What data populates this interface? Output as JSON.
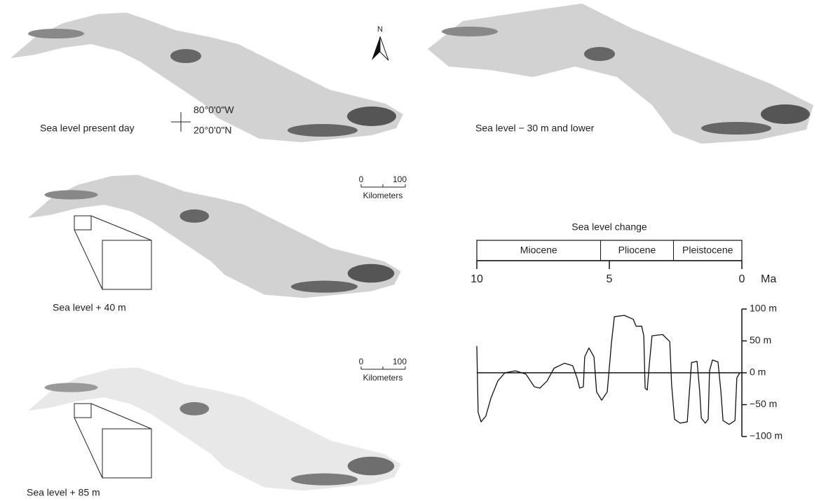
{
  "panels": [
    {
      "label": "Sea level present day"
    },
    {
      "label": "Sea level − 30 m and lower"
    },
    {
      "label": "Sea level + 40 m"
    },
    {
      "label": "Sea level + 85 m"
    }
  ],
  "north_arrow": "N",
  "coordinates": {
    "longitude": "80°0'0\"W",
    "latitude": "20°0'0\"N"
  },
  "scale_bars": [
    {
      "ticks": [
        0,
        100
      ],
      "unit": "Kilometers"
    },
    {
      "ticks": [
        0,
        100
      ],
      "unit": "Kilometers"
    }
  ],
  "chart_data": {
    "type": "line",
    "title": "Sea level change",
    "epochs": [
      {
        "name": "Miocene",
        "start": 10,
        "end": 5.33
      },
      {
        "name": "Pliocene",
        "start": 5.33,
        "end": 2.58
      },
      {
        "name": "Pleistocene",
        "start": 2.58,
        "end": 0
      }
    ],
    "x_label": "Ma",
    "xlim": [
      10,
      0
    ],
    "xticks": [
      10,
      5,
      0
    ],
    "ylim": [
      -100,
      100
    ],
    "yticks": [
      {
        "value": 100,
        "label": "100 m"
      },
      {
        "value": 50,
        "label": "50 m"
      },
      {
        "value": 0,
        "label": "0 m"
      },
      {
        "value": -50,
        "label": "−50 m"
      },
      {
        "value": -100,
        "label": "−100 m"
      }
    ],
    "color": "#111",
    "x": [
      10,
      9.95,
      9.84,
      9.66,
      9.47,
      9.21,
      8.94,
      8.54,
      8.15,
      7.83,
      7.62,
      7.35,
      7.09,
      6.69,
      6.38,
      6.22,
      6.12,
      5.98,
      5.93,
      5.77,
      5.58,
      5.48,
      5.29,
      5.08,
      4.92,
      4.81,
      4.44,
      4.1,
      3.99,
      3.78,
      3.7,
      3.65,
      3.57,
      3.49,
      3.39,
      2.99,
      2.72,
      2.65,
      2.54,
      2.33,
      2.06,
      1.98,
      1.9,
      1.69,
      1.59,
      1.53,
      1.38,
      1.27,
      1.22,
      1.11,
      0.9,
      0.79,
      0.71,
      0.48,
      0.26,
      0.19,
      0.08
    ],
    "values": [
      42,
      -62,
      -77,
      -68,
      -40,
      -13,
      0,
      3,
      -2,
      -22,
      -24,
      -13,
      7,
      15,
      11,
      -8,
      -24,
      -22,
      25,
      39,
      25,
      -30,
      -43,
      -30,
      47,
      88,
      90,
      84,
      73,
      73,
      58,
      -24,
      -27,
      14,
      58,
      60,
      49,
      -19,
      -73,
      -79,
      -77,
      -30,
      16,
      18,
      -30,
      -71,
      -79,
      -73,
      3,
      20,
      17,
      -30,
      -75,
      -81,
      -75,
      -8,
      0
    ]
  }
}
